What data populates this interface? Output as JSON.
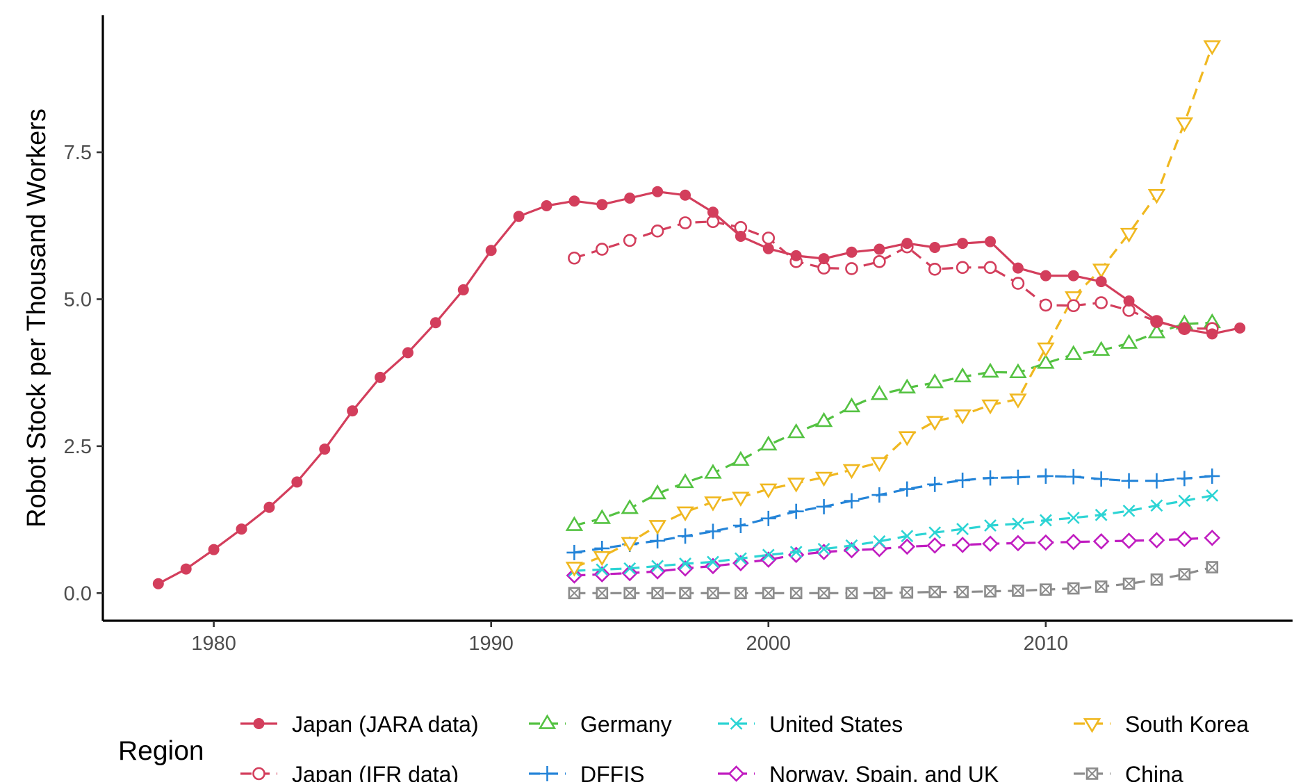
{
  "chart_data": {
    "type": "line",
    "title": "",
    "xlabel": "",
    "ylabel": "Robot Stock per Thousand Workers",
    "xlim": [
      1976.0,
      2018.9
    ],
    "ylim": [
      -0.47,
      9.83
    ],
    "xticks": [
      1980,
      1990,
      2000,
      2010
    ],
    "yticks": [
      0.0,
      2.5,
      5.0,
      7.5
    ],
    "ytick_labels": [
      "0.0",
      "2.5",
      "5.0",
      "7.5"
    ],
    "grid": false,
    "legend": {
      "title": "Region",
      "position": "bottom"
    },
    "series": [
      {
        "name": "Japan (JARA data)",
        "color": "#d33e5c",
        "dash": "solid",
        "marker": "filled-circle",
        "x": [
          1978,
          1979,
          1980,
          1981,
          1982,
          1983,
          1984,
          1985,
          1986,
          1987,
          1988,
          1989,
          1990,
          1991,
          1992,
          1993,
          1994,
          1995,
          1996,
          1997,
          1998,
          1999,
          2000,
          2001,
          2002,
          2003,
          2004,
          2005,
          2006,
          2007,
          2008,
          2009,
          2010,
          2011,
          2012,
          2013,
          2014,
          2015,
          2016,
          2017
        ],
        "y": [
          0.16,
          0.41,
          0.74,
          1.09,
          1.46,
          1.89,
          2.45,
          3.1,
          3.67,
          4.09,
          4.6,
          5.16,
          5.83,
          6.41,
          6.59,
          6.67,
          6.61,
          6.72,
          6.83,
          6.77,
          6.48,
          6.07,
          5.86,
          5.74,
          5.69,
          5.8,
          5.85,
          5.95,
          5.88,
          5.95,
          5.98,
          5.53,
          5.4,
          5.4,
          5.3,
          4.97,
          4.63,
          4.49,
          4.41,
          4.51
        ]
      },
      {
        "name": "Japan (IFR data)",
        "color": "#d33e5c",
        "dash": "dashed",
        "marker": "open-circle",
        "x": [
          1993,
          1994,
          1995,
          1996,
          1997,
          1998,
          1999,
          2000,
          2001,
          2002,
          2003,
          2004,
          2005,
          2006,
          2007,
          2008,
          2009,
          2010,
          2011,
          2012,
          2013,
          2014,
          2015,
          2016
        ],
        "y": [
          5.7,
          5.85,
          6.0,
          6.16,
          6.3,
          6.32,
          6.22,
          6.04,
          5.64,
          5.53,
          5.52,
          5.64,
          5.89,
          5.51,
          5.54,
          5.54,
          5.27,
          4.9,
          4.89,
          4.94,
          4.81,
          4.62,
          4.5,
          4.5
        ]
      },
      {
        "name": "Germany",
        "color": "#54c242",
        "dash": "dashed",
        "marker": "triangle-up",
        "x": [
          1993,
          1994,
          1995,
          1996,
          1997,
          1998,
          1999,
          2000,
          2001,
          2002,
          2003,
          2004,
          2005,
          2006,
          2007,
          2008,
          2009,
          2010,
          2011,
          2012,
          2013,
          2014,
          2015,
          2016
        ],
        "y": [
          1.15,
          1.27,
          1.44,
          1.69,
          1.88,
          2.04,
          2.26,
          2.52,
          2.73,
          2.92,
          3.17,
          3.38,
          3.49,
          3.58,
          3.68,
          3.76,
          3.75,
          3.91,
          4.06,
          4.13,
          4.25,
          4.43,
          4.58,
          4.6
        ]
      },
      {
        "name": "DFFIS",
        "color": "#2484d8",
        "dash": "dashed",
        "marker": "plus",
        "x": [
          1993,
          1994,
          1995,
          1996,
          1997,
          1998,
          1999,
          2000,
          2001,
          2002,
          2003,
          2004,
          2005,
          2006,
          2007,
          2008,
          2009,
          2010,
          2011,
          2012,
          2013,
          2014,
          2015,
          2016
        ],
        "y": [
          0.69,
          0.76,
          0.83,
          0.89,
          0.97,
          1.05,
          1.15,
          1.27,
          1.39,
          1.47,
          1.57,
          1.67,
          1.77,
          1.85,
          1.92,
          1.96,
          1.97,
          1.99,
          1.98,
          1.94,
          1.91,
          1.91,
          1.95,
          1.99
        ]
      },
      {
        "name": "United States",
        "color": "#2cd4d4",
        "dash": "dashed",
        "marker": "cross",
        "x": [
          1993,
          1994,
          1995,
          1996,
          1997,
          1998,
          1999,
          2000,
          2001,
          2002,
          2003,
          2004,
          2005,
          2006,
          2007,
          2008,
          2009,
          2010,
          2011,
          2012,
          2013,
          2014,
          2015,
          2016
        ],
        "y": [
          0.38,
          0.4,
          0.42,
          0.46,
          0.5,
          0.53,
          0.59,
          0.65,
          0.7,
          0.75,
          0.81,
          0.88,
          0.97,
          1.03,
          1.09,
          1.15,
          1.18,
          1.24,
          1.28,
          1.33,
          1.4,
          1.49,
          1.57,
          1.66
        ]
      },
      {
        "name": "South Korea",
        "color": "#f0b820",
        "dash": "dashed",
        "marker": "triangle-down",
        "x": [
          1993,
          1994,
          1995,
          1996,
          1997,
          1998,
          1999,
          2000,
          2001,
          2002,
          2003,
          2004,
          2005,
          2006,
          2007,
          2008,
          2009,
          2010,
          2011,
          2012,
          2013,
          2014,
          2015,
          2016
        ],
        "y": [
          0.44,
          0.62,
          0.86,
          1.15,
          1.38,
          1.55,
          1.63,
          1.77,
          1.87,
          1.97,
          2.1,
          2.22,
          2.66,
          2.92,
          3.03,
          3.2,
          3.3,
          4.17,
          5.04,
          5.51,
          6.12,
          6.78,
          8.0,
          9.31
        ]
      },
      {
        "name": "Norway, Spain, and UK",
        "color": "#c01cc0",
        "dash": "dashed",
        "marker": "diamond",
        "x": [
          1993,
          1994,
          1995,
          1996,
          1997,
          1998,
          1999,
          2000,
          2001,
          2002,
          2003,
          2004,
          2005,
          2006,
          2007,
          2008,
          2009,
          2010,
          2011,
          2012,
          2013,
          2014,
          2015,
          2016
        ],
        "y": [
          0.3,
          0.32,
          0.34,
          0.37,
          0.42,
          0.46,
          0.51,
          0.57,
          0.65,
          0.7,
          0.73,
          0.75,
          0.79,
          0.81,
          0.82,
          0.84,
          0.85,
          0.86,
          0.87,
          0.88,
          0.89,
          0.9,
          0.92,
          0.94
        ]
      },
      {
        "name": "China",
        "color": "#8c8c8c",
        "dash": "dashed",
        "marker": "boxed-x",
        "x": [
          1993,
          1994,
          1995,
          1996,
          1997,
          1998,
          1999,
          2000,
          2001,
          2002,
          2003,
          2004,
          2005,
          2006,
          2007,
          2008,
          2009,
          2010,
          2011,
          2012,
          2013,
          2014,
          2015,
          2016
        ],
        "y": [
          0.0,
          0.0,
          0.0,
          0.0,
          0.0,
          0.0,
          0.0,
          0.0,
          0.0,
          0.0,
          0.0,
          0.0,
          0.01,
          0.02,
          0.02,
          0.03,
          0.04,
          0.06,
          0.08,
          0.11,
          0.16,
          0.23,
          0.32,
          0.44
        ]
      }
    ],
    "legend_order": [
      [
        "Japan (JARA data)",
        "Japan (IFR data)"
      ],
      [
        "Germany",
        "DFFIS"
      ],
      [
        "United States",
        "Norway, Spain, and UK"
      ],
      [
        "South Korea",
        "China"
      ]
    ]
  }
}
